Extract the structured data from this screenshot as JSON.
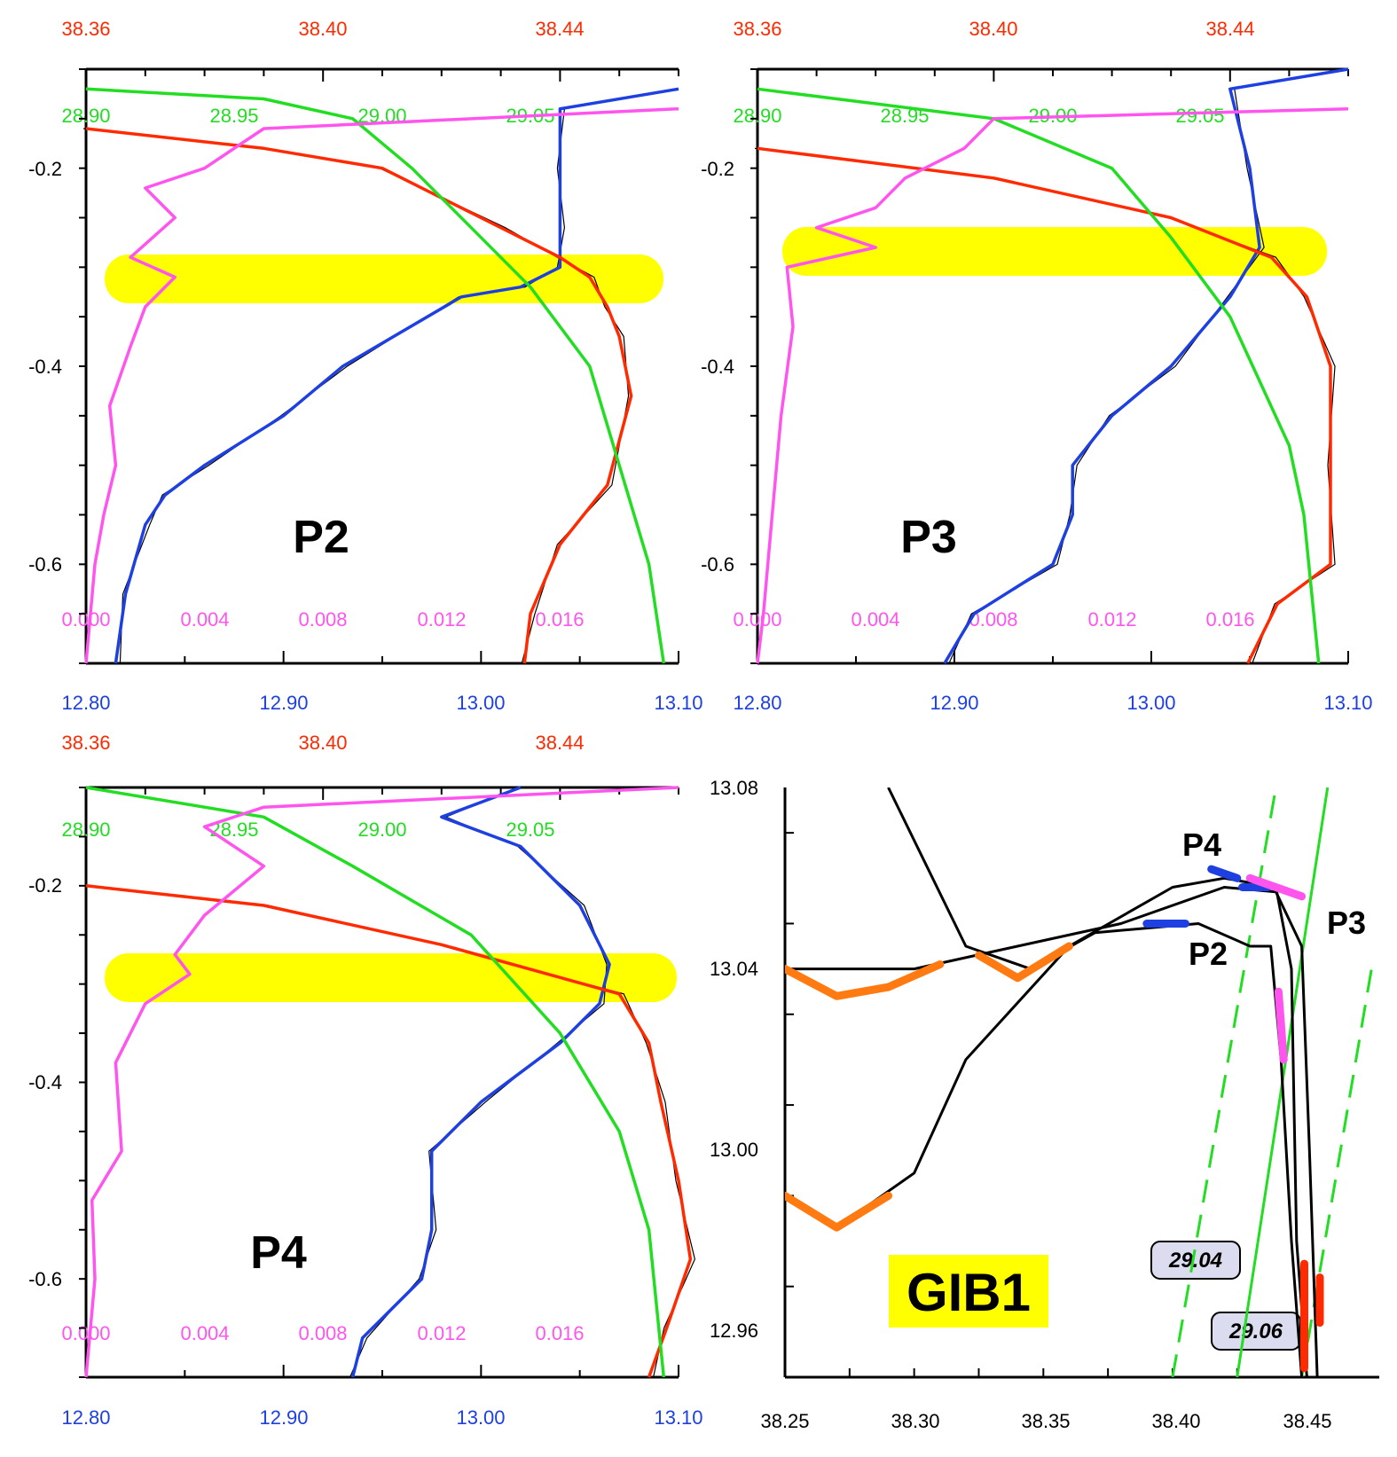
{
  "colors": {
    "salinity": "#ff2a00",
    "temperature": "#1e40e0",
    "density": "#22dd22",
    "turbulence": "#ff55ee",
    "raw": "#000000",
    "highlight": "#ffff00",
    "orange_segment": "#ff7a10"
  },
  "chart_data": [
    {
      "id": "P2",
      "type": "line",
      "label": "P2",
      "axes": {
        "y": {
          "range": [
            -0.7,
            -0.1
          ],
          "ticks": [
            "-0.2",
            "-0.4",
            "-0.6"
          ]
        },
        "salinity_top": {
          "range": [
            38.36,
            38.46
          ],
          "ticks": [
            "38.36",
            "38.40",
            "38.44"
          ]
        },
        "density_top": {
          "range": [
            28.9,
            29.1
          ],
          "ticks": [
            "28.90",
            "28.95",
            "29.00",
            "29.05"
          ]
        },
        "turbulence_bottom": {
          "range": [
            0.0,
            0.02
          ],
          "ticks": [
            "0.000",
            "0.004",
            "0.008",
            "0.012",
            "0.016"
          ]
        },
        "temperature_bottom": {
          "range": [
            12.8,
            13.1
          ],
          "ticks": [
            "12.80",
            "12.90",
            "13.00",
            "13.10"
          ]
        }
      },
      "highlight_band_y": [
        -0.337,
        -0.288
      ],
      "series": [
        {
          "var": "temperature",
          "axis": "temperature_bottom",
          "points": [
            [
              13.1,
              -0.12
            ],
            [
              13.04,
              -0.14
            ],
            [
              13.04,
              -0.2
            ],
            [
              13.04,
              -0.26
            ],
            [
              13.04,
              -0.3
            ],
            [
              13.02,
              -0.32
            ],
            [
              12.99,
              -0.33
            ],
            [
              12.93,
              -0.4
            ],
            [
              12.9,
              -0.45
            ],
            [
              12.86,
              -0.5
            ],
            [
              12.84,
              -0.53
            ],
            [
              12.83,
              -0.56
            ],
            [
              12.82,
              -0.63
            ],
            [
              12.815,
              -0.7
            ]
          ]
        },
        {
          "var": "salinity",
          "axis": "salinity_top",
          "points": [
            [
              38.36,
              -0.16
            ],
            [
              38.39,
              -0.18
            ],
            [
              38.41,
              -0.2
            ],
            [
              38.43,
              -0.26
            ],
            [
              38.44,
              -0.29
            ],
            [
              38.445,
              -0.31
            ],
            [
              38.448,
              -0.34
            ],
            [
              38.45,
              -0.37
            ],
            [
              38.452,
              -0.43
            ],
            [
              38.448,
              -0.52
            ],
            [
              38.44,
              -0.58
            ],
            [
              38.435,
              -0.65
            ],
            [
              38.434,
              -0.7
            ]
          ]
        },
        {
          "var": "density",
          "axis": "density_top",
          "points": [
            [
              28.9,
              -0.12
            ],
            [
              28.96,
              -0.13
            ],
            [
              28.99,
              -0.15
            ],
            [
              29.01,
              -0.2
            ],
            [
              29.03,
              -0.26
            ],
            [
              29.05,
              -0.32
            ],
            [
              29.07,
              -0.4
            ],
            [
              29.08,
              -0.5
            ],
            [
              29.09,
              -0.6
            ],
            [
              29.095,
              -0.7
            ]
          ]
        },
        {
          "var": "turbulence",
          "axis": "turbulence_bottom",
          "points": [
            [
              0.02,
              -0.14
            ],
            [
              0.006,
              -0.16
            ],
            [
              0.004,
              -0.2
            ],
            [
              0.002,
              -0.22
            ],
            [
              0.003,
              -0.25
            ],
            [
              0.0015,
              -0.29
            ],
            [
              0.003,
              -0.31
            ],
            [
              0.002,
              -0.34
            ],
            [
              0.0015,
              -0.38
            ],
            [
              0.0008,
              -0.44
            ],
            [
              0.001,
              -0.5
            ],
            [
              0.0006,
              -0.55
            ],
            [
              0.0003,
              -0.6
            ],
            [
              0.0,
              -0.7
            ]
          ]
        }
      ]
    },
    {
      "id": "P3",
      "type": "line",
      "label": "P3",
      "axes": {
        "y": {
          "range": [
            -0.7,
            -0.1
          ],
          "ticks": [
            "-0.2",
            "-0.4",
            "-0.6"
          ]
        },
        "salinity_top": {
          "range": [
            38.36,
            38.46
          ],
          "ticks": [
            "38.36",
            "38.40",
            "38.44"
          ]
        },
        "density_top": {
          "range": [
            28.9,
            29.1
          ],
          "ticks": [
            "28.90",
            "28.95",
            "29.00",
            "29.05"
          ]
        },
        "turbulence_bottom": {
          "range": [
            0.0,
            0.02
          ],
          "ticks": [
            "0.000",
            "0.004",
            "0.008",
            "0.012",
            "0.016"
          ]
        },
        "temperature_bottom": {
          "range": [
            12.8,
            13.1
          ],
          "ticks": [
            "12.80",
            "12.90",
            "13.00",
            "13.10"
          ]
        }
      },
      "highlight_band_y": [
        -0.31,
        -0.262
      ],
      "series": [
        {
          "var": "temperature",
          "axis": "temperature_bottom",
          "points": [
            [
              13.1,
              -0.1
            ],
            [
              13.04,
              -0.12
            ],
            [
              13.05,
              -0.2
            ],
            [
              13.055,
              -0.28
            ],
            [
              13.04,
              -0.33
            ],
            [
              13.01,
              -0.4
            ],
            [
              12.98,
              -0.45
            ],
            [
              12.96,
              -0.5
            ],
            [
              12.96,
              -0.55
            ],
            [
              12.95,
              -0.6
            ],
            [
              12.91,
              -0.65
            ],
            [
              12.895,
              -0.7
            ]
          ]
        },
        {
          "var": "salinity",
          "axis": "salinity_top",
          "points": [
            [
              38.36,
              -0.18
            ],
            [
              38.4,
              -0.21
            ],
            [
              38.43,
              -0.25
            ],
            [
              38.447,
              -0.29
            ],
            [
              38.453,
              -0.33
            ],
            [
              38.457,
              -0.4
            ],
            [
              38.457,
              -0.5
            ],
            [
              38.457,
              -0.6
            ],
            [
              38.448,
              -0.64
            ],
            [
              38.443,
              -0.7
            ]
          ]
        },
        {
          "var": "density",
          "axis": "density_top",
          "points": [
            [
              28.9,
              -0.12
            ],
            [
              28.98,
              -0.15
            ],
            [
              29.02,
              -0.2
            ],
            [
              29.04,
              -0.27
            ],
            [
              29.06,
              -0.35
            ],
            [
              29.08,
              -0.48
            ],
            [
              29.085,
              -0.55
            ],
            [
              29.09,
              -0.7
            ]
          ]
        },
        {
          "var": "turbulence",
          "axis": "turbulence_bottom",
          "points": [
            [
              0.02,
              -0.14
            ],
            [
              0.008,
              -0.15
            ],
            [
              0.007,
              -0.18
            ],
            [
              0.005,
              -0.21
            ],
            [
              0.004,
              -0.24
            ],
            [
              0.002,
              -0.26
            ],
            [
              0.004,
              -0.28
            ],
            [
              0.001,
              -0.3
            ],
            [
              0.0012,
              -0.36
            ],
            [
              0.0008,
              -0.45
            ],
            [
              0.0005,
              -0.55
            ],
            [
              0.0002,
              -0.65
            ],
            [
              0.0,
              -0.7
            ]
          ]
        }
      ]
    },
    {
      "id": "P4",
      "type": "line",
      "label": "P4",
      "axes": {
        "y": {
          "range": [
            -0.7,
            -0.1
          ],
          "ticks": [
            "-0.2",
            "-0.4",
            "-0.6"
          ]
        },
        "salinity_top": {
          "range": [
            38.36,
            38.46
          ],
          "ticks": [
            "38.36",
            "38.40",
            "38.44"
          ]
        },
        "density_top": {
          "range": [
            28.9,
            29.1
          ],
          "ticks": [
            "28.90",
            "28.95",
            "29.00",
            "29.05"
          ]
        },
        "turbulence_bottom": {
          "range": [
            0.0,
            0.02
          ],
          "ticks": [
            "0.000",
            "0.004",
            "0.008",
            "0.012",
            "0.016"
          ]
        },
        "temperature_bottom": {
          "range": [
            12.8,
            13.1
          ],
          "ticks": [
            "12.80",
            "12.90",
            "13.00",
            "13.10"
          ]
        }
      },
      "highlight_band_y": [
        -0.32,
        -0.272
      ],
      "series": [
        {
          "var": "temperature",
          "axis": "temperature_bottom",
          "points": [
            [
              13.02,
              -0.1
            ],
            [
              12.98,
              -0.13
            ],
            [
              13.02,
              -0.16
            ],
            [
              13.05,
              -0.22
            ],
            [
              13.065,
              -0.28
            ],
            [
              13.06,
              -0.32
            ],
            [
              13.04,
              -0.36
            ],
            [
              13.0,
              -0.42
            ],
            [
              12.975,
              -0.47
            ],
            [
              12.975,
              -0.55
            ],
            [
              12.97,
              -0.6
            ],
            [
              12.94,
              -0.66
            ],
            [
              12.935,
              -0.7
            ]
          ]
        },
        {
          "var": "salinity",
          "axis": "salinity_top",
          "points": [
            [
              38.36,
              -0.2
            ],
            [
              38.39,
              -0.22
            ],
            [
              38.42,
              -0.26
            ],
            [
              38.45,
              -0.31
            ],
            [
              38.455,
              -0.36
            ],
            [
              38.457,
              -0.42
            ],
            [
              38.46,
              -0.5
            ],
            [
              38.462,
              -0.58
            ],
            [
              38.458,
              -0.65
            ],
            [
              38.455,
              -0.7
            ]
          ]
        },
        {
          "var": "density",
          "axis": "density_top",
          "points": [
            [
              28.9,
              -0.1
            ],
            [
              28.96,
              -0.13
            ],
            [
              28.99,
              -0.18
            ],
            [
              29.03,
              -0.25
            ],
            [
              29.06,
              -0.35
            ],
            [
              29.08,
              -0.45
            ],
            [
              29.09,
              -0.55
            ],
            [
              29.095,
              -0.7
            ]
          ]
        },
        {
          "var": "turbulence",
          "axis": "turbulence_bottom",
          "points": [
            [
              0.02,
              -0.1
            ],
            [
              0.006,
              -0.12
            ],
            [
              0.004,
              -0.14
            ],
            [
              0.006,
              -0.18
            ],
            [
              0.004,
              -0.23
            ],
            [
              0.003,
              -0.27
            ],
            [
              0.0035,
              -0.29
            ],
            [
              0.002,
              -0.32
            ],
            [
              0.001,
              -0.38
            ],
            [
              0.0012,
              -0.47
            ],
            [
              0.0002,
              -0.52
            ],
            [
              0.0003,
              -0.6
            ],
            [
              0.0,
              -0.7
            ]
          ]
        }
      ]
    },
    {
      "id": "GIB1",
      "type": "line",
      "label": "GIB1",
      "xlim": [
        38.25,
        38.48
      ],
      "ylim": [
        12.95,
        13.08
      ],
      "x_ticks": [
        "38.25",
        "38.30",
        "38.35",
        "38.40",
        "38.45"
      ],
      "y_ticks": [
        "13.08",
        "13.04",
        "13.00",
        "12.96"
      ],
      "isopycnal_labels": [
        "29.04",
        "29.06"
      ],
      "station_labels": [
        "P4",
        "P3",
        "P2"
      ],
      "series": [
        {
          "name": "P2",
          "points": [
            [
              38.29,
              13.08
            ],
            [
              38.32,
              13.045
            ],
            [
              38.345,
              13.04
            ],
            [
              38.37,
              13.048
            ],
            [
              38.41,
              13.05
            ],
            [
              38.43,
              13.045
            ],
            [
              38.438,
              13.045
            ],
            [
              38.442,
              13.02
            ],
            [
              38.446,
              12.98
            ],
            [
              38.45,
              12.95
            ]
          ]
        },
        {
          "name": "P3",
          "points": [
            [
              38.25,
              13.04
            ],
            [
              38.3,
              13.04
            ],
            [
              38.34,
              13.045
            ],
            [
              38.38,
              13.05
            ],
            [
              38.42,
              13.058
            ],
            [
              38.44,
              13.057
            ],
            [
              38.45,
              13.045
            ],
            [
              38.453,
              13.0
            ],
            [
              38.456,
              12.95
            ]
          ]
        },
        {
          "name": "P4",
          "points": [
            [
              38.25,
              12.99
            ],
            [
              38.27,
              12.983
            ],
            [
              38.3,
              12.995
            ],
            [
              38.32,
              13.02
            ],
            [
              38.36,
              13.045
            ],
            [
              38.4,
              13.058
            ],
            [
              38.42,
              13.06
            ],
            [
              38.44,
              13.058
            ],
            [
              38.446,
              13.04
            ],
            [
              38.448,
              12.98
            ],
            [
              38.452,
              12.95
            ]
          ]
        }
      ],
      "isopycnals": [
        {
          "value": "29.04",
          "style": "solid",
          "points": [
            [
              38.425,
              12.95
            ],
            [
              38.46,
              13.08
            ]
          ]
        },
        {
          "value": "29.04",
          "style": "dashed",
          "points": [
            [
              38.4,
              12.95
            ],
            [
              38.44,
              13.08
            ]
          ]
        },
        {
          "value": "29.06",
          "style": "dashed",
          "points": [
            [
              38.45,
              12.95
            ],
            [
              38.477,
              13.04
            ]
          ]
        }
      ]
    }
  ]
}
